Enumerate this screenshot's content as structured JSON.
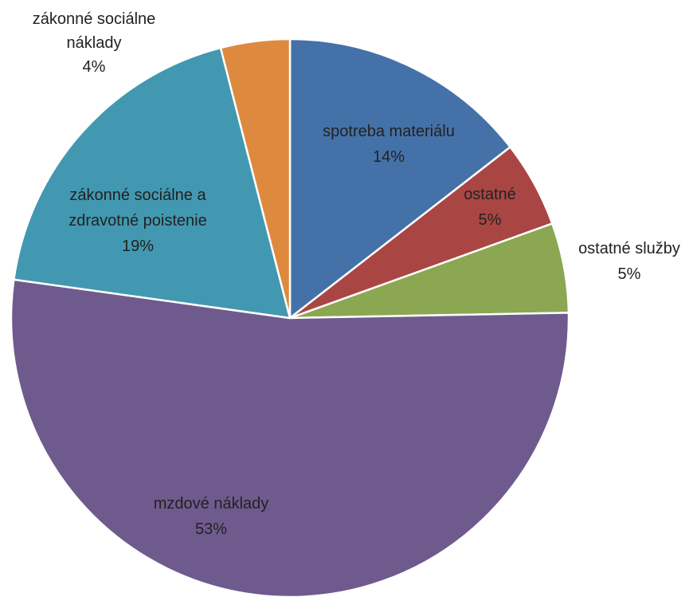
{
  "chart_data": {
    "type": "pie",
    "title": "",
    "slices": [
      {
        "label_lines": [
          "spotreba materiálu"
        ],
        "pct_text": "14%",
        "value": 14.5,
        "color": "#4472A8"
      },
      {
        "label_lines": [
          "ostatné"
        ],
        "pct_text": "5%",
        "value": 5.0,
        "color": "#A94644"
      },
      {
        "label_lines": [
          "ostatné služby"
        ],
        "pct_text": "5%",
        "value": 5.2,
        "color": "#8BA752"
      },
      {
        "label_lines": [
          "mzdové náklady"
        ],
        "pct_text": "53%",
        "value": 52.5,
        "color": "#6F5A8D"
      },
      {
        "label_lines": [
          "zákonné sociálne a",
          "zdravotné poistenie"
        ],
        "pct_text": "19%",
        "value": 18.8,
        "color": "#4298B0"
      },
      {
        "label_lines": [
          "zákonné sociálne",
          "náklady"
        ],
        "pct_text": "4%",
        "value": 4.0,
        "color": "#DE8A3E"
      }
    ]
  }
}
